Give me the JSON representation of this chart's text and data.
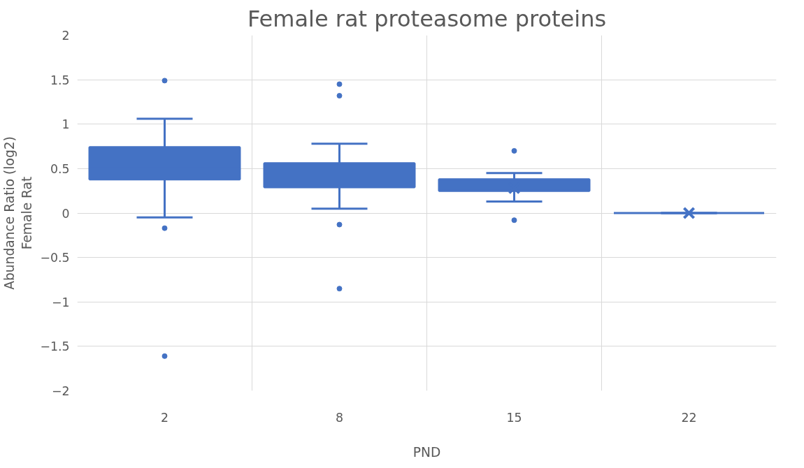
{
  "chart_data": {
    "type": "box",
    "title": "Female rat proteasome proteins",
    "xlabel": "PND",
    "ylabel": "Abundance Ratio (log2)\nFemale Rat",
    "categories": [
      "2",
      "8",
      "15",
      "22"
    ],
    "color": "#4472c4",
    "boxes": [
      {
        "low": -0.05,
        "q1": 0.38,
        "median": 0.52,
        "q3": 0.74,
        "high": 1.06,
        "outliers": [
          1.49,
          -0.17,
          -1.61
        ]
      },
      {
        "low": 0.05,
        "q1": 0.29,
        "median": 0.44,
        "q3": 0.56,
        "high": 0.78,
        "outliers": [
          1.45,
          1.32,
          -0.13,
          -0.85
        ]
      },
      {
        "low": 0.13,
        "q1": 0.25,
        "median": 0.31,
        "q3": 0.38,
        "high": 0.45,
        "mean": 0.28,
        "outliers": [
          0.7,
          -0.08
        ]
      },
      {
        "low": 0,
        "q1": 0,
        "median": 0,
        "q3": 0,
        "high": 0,
        "mean": 0
      }
    ],
    "ylim": [
      -2,
      2
    ],
    "yticks": [
      -2,
      -1.5,
      -1,
      -0.5,
      0,
      0.5,
      1,
      1.5,
      2
    ],
    "grid": true
  }
}
